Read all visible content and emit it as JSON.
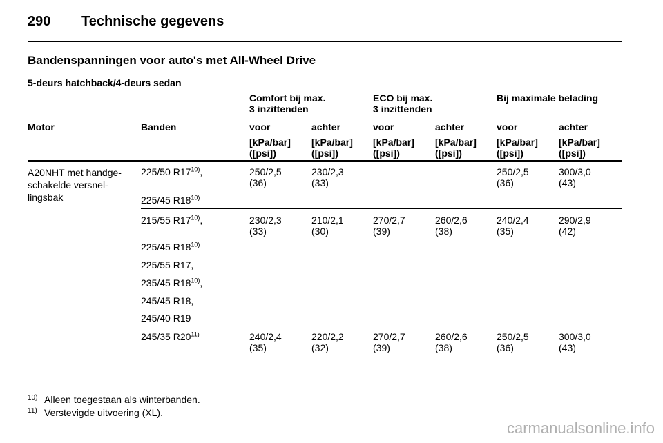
{
  "header": {
    "page_number": "290",
    "title": "Technische gegevens"
  },
  "section_title": "Bandenspanningen voor auto's met All-Wheel Drive",
  "subtitle": "5-deurs hatchback/4-deurs sedan",
  "groups": {
    "comfort": [
      "Comfort bij max.",
      "3 inzittenden"
    ],
    "eco": [
      "ECO bij max.",
      "3 inzittenden"
    ],
    "max": "Bij maximale belading"
  },
  "columns": {
    "motor": "Motor",
    "banden": "Banden",
    "voor": "voor",
    "achter": "achter",
    "unit1": "[kPa/bar]",
    "unit2": "([psi])"
  },
  "motor": [
    "A20NHT met handge-",
    "schakelde versnel-",
    "lingsbak"
  ],
  "rows": [
    {
      "tires": [
        {
          "size": "225/50 R17",
          "note": "10)",
          "suffix": ","
        },
        {
          "size": "225/45 R18",
          "note": "10)",
          "suffix": ""
        }
      ],
      "values": [
        [
          "250/2,5",
          "(36)"
        ],
        [
          "230/2,3",
          "(33)"
        ],
        [
          "–",
          ""
        ],
        [
          "–",
          ""
        ],
        [
          "250/2,5",
          "(36)"
        ],
        [
          "300/3,0",
          "(43)"
        ]
      ]
    },
    {
      "tires": [
        {
          "size": "215/55 R17",
          "note": "10)",
          "suffix": ","
        },
        {
          "size": "225/45 R18",
          "note": "10)",
          "suffix": ""
        },
        {
          "size": "225/55 R17,",
          "note": "",
          "suffix": ""
        },
        {
          "size": "235/45 R18",
          "note": "10)",
          "suffix": ","
        },
        {
          "size": "245/45 R18,",
          "note": "",
          "suffix": ""
        },
        {
          "size": "245/40 R19",
          "note": "",
          "suffix": ""
        }
      ],
      "values": [
        [
          "230/2,3",
          "(33)"
        ],
        [
          "210/2,1",
          "(30)"
        ],
        [
          "270/2,7",
          "(39)"
        ],
        [
          "260/2,6",
          "(38)"
        ],
        [
          "240/2,4",
          "(35)"
        ],
        [
          "290/2,9",
          "(42)"
        ]
      ]
    },
    {
      "tires": [
        {
          "size": "245/35 R20",
          "note": "11)",
          "suffix": ""
        }
      ],
      "values": [
        [
          "240/2,4",
          "(35)"
        ],
        [
          "220/2,2",
          "(32)"
        ],
        [
          "270/2,7",
          "(39)"
        ],
        [
          "260/2,6",
          "(38)"
        ],
        [
          "250/2,5",
          "(36)"
        ],
        [
          "300/3,0",
          "(43)"
        ]
      ]
    }
  ],
  "footnotes": [
    {
      "num": "10)",
      "text": "Alleen toegestaan als winterbanden."
    },
    {
      "num": "11)",
      "text": "Verstevigde uitvoering (XL)."
    }
  ],
  "watermark": "carmanualsonline.info"
}
